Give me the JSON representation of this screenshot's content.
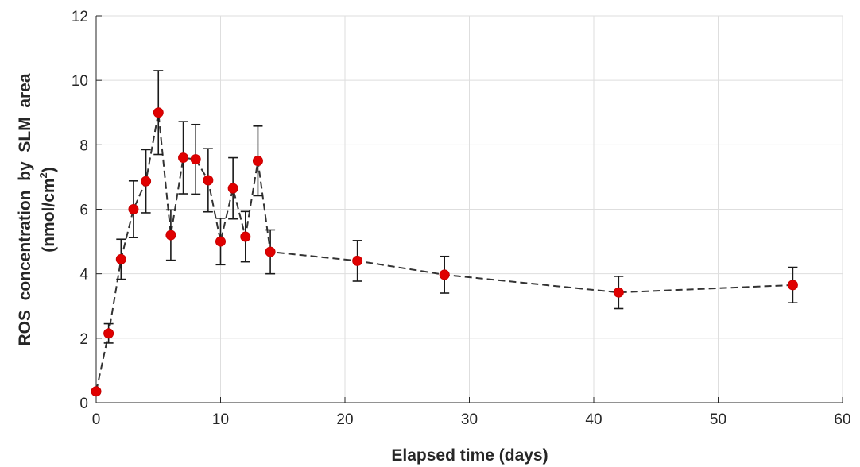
{
  "chart_data": {
    "type": "scatter",
    "title": "",
    "xlabel": "Elapsed time (days)",
    "ylabel_line1": "ROS  concentration  by  SLM  area",
    "ylabel_line2_pre": "(nmol/cm",
    "ylabel_line2_sup": "2",
    "ylabel_line2_post": ")",
    "xlim": [
      0,
      60
    ],
    "ylim": [
      0,
      12
    ],
    "xticks": [
      0,
      10,
      20,
      30,
      40,
      50,
      60
    ],
    "yticks": [
      0,
      2,
      4,
      6,
      8,
      10,
      12
    ],
    "grid": true,
    "line_style": "dashed",
    "marker_color": "#e00000",
    "line_color": "#333333",
    "series": [
      {
        "x": [
          0,
          1,
          2,
          3,
          4,
          5,
          6,
          7,
          8,
          9,
          10,
          11,
          12,
          13,
          14,
          21,
          28,
          42,
          56
        ],
        "y": [
          0.35,
          2.15,
          4.45,
          6.0,
          6.87,
          9.0,
          5.2,
          7.6,
          7.55,
          6.9,
          5.0,
          6.65,
          5.15,
          7.5,
          4.68,
          4.4,
          3.97,
          3.42,
          3.65
        ],
        "err": [
          0.05,
          0.3,
          0.62,
          0.88,
          0.98,
          1.3,
          0.78,
          1.12,
          1.08,
          0.98,
          0.72,
          0.95,
          0.78,
          1.08,
          0.68,
          0.63,
          0.57,
          0.5,
          0.55
        ]
      }
    ]
  }
}
